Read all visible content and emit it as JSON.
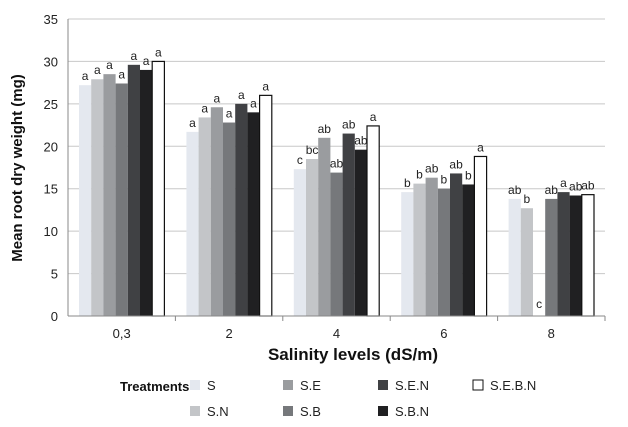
{
  "chart_data": {
    "type": "bar",
    "xlabel": "Salinity levels (dS/m)",
    "ylabel": "Mean root dry weight (mg)",
    "ylim": [
      0,
      35
    ],
    "yticks": [
      0,
      5,
      10,
      15,
      20,
      25,
      30,
      35
    ],
    "grid": "horizontal",
    "legend_position": "bottom",
    "legend_title": "Treatments",
    "categories": [
      "0,3",
      "2",
      "4",
      "6",
      "8"
    ],
    "series": [
      {
        "name": "S",
        "color": "#e4e8ef",
        "values": [
          27.2,
          21.7,
          17.3,
          14.6,
          13.8
        ],
        "labels": [
          "a",
          "a",
          "c",
          "b",
          "ab"
        ]
      },
      {
        "name": "S.N",
        "color": "#c3c5c8",
        "values": [
          27.9,
          23.4,
          18.5,
          15.6,
          12.7
        ],
        "labels": [
          "a",
          "a",
          "bc",
          "b",
          "b"
        ]
      },
      {
        "name": "S.E",
        "color": "#9a9c9f",
        "values": [
          28.5,
          24.6,
          21.0,
          16.3,
          0
        ],
        "labels": [
          "a",
          "a",
          "ab",
          "ab",
          "c"
        ]
      },
      {
        "name": "S.B",
        "color": "#76787b",
        "values": [
          27.4,
          22.8,
          16.9,
          15.0,
          13.8
        ],
        "labels": [
          "a",
          "a",
          "ab",
          "b",
          "ab"
        ]
      },
      {
        "name": "S.E.N",
        "color": "#404144",
        "values": [
          29.6,
          25.0,
          21.5,
          16.8,
          14.6
        ],
        "labels": [
          "a",
          "a",
          "ab",
          "ab",
          "a"
        ]
      },
      {
        "name": "S.B.N",
        "color": "#202022",
        "values": [
          29.0,
          24.0,
          19.6,
          15.5,
          14.2
        ],
        "labels": [
          "a",
          "a",
          "ab",
          "b",
          "ab"
        ]
      },
      {
        "name": "S.E.B.N",
        "color": "#ffffff",
        "values": [
          30.0,
          26.0,
          22.4,
          18.8,
          14.3
        ],
        "labels": [
          "a",
          "a",
          "a",
          "a",
          "ab"
        ]
      }
    ]
  }
}
